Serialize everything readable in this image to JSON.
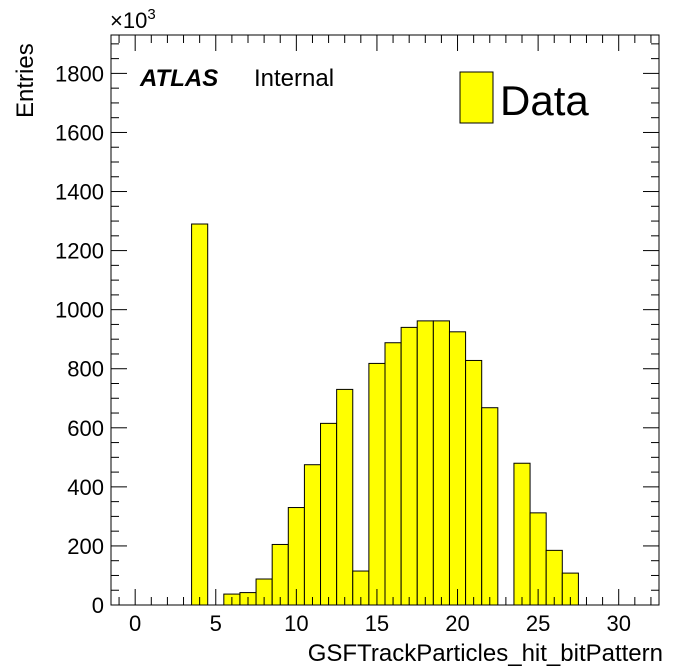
{
  "chart_data": {
    "type": "bar",
    "histogram": true,
    "bin_width": 1,
    "bins": [
      {
        "x": 0,
        "value": 0
      },
      {
        "x": 1,
        "value": 0
      },
      {
        "x": 2,
        "value": 0
      },
      {
        "x": 3,
        "value": 0
      },
      {
        "x": 4,
        "value": 1290
      },
      {
        "x": 5,
        "value": 0
      },
      {
        "x": 6,
        "value": 37
      },
      {
        "x": 7,
        "value": 42
      },
      {
        "x": 8,
        "value": 88
      },
      {
        "x": 9,
        "value": 205
      },
      {
        "x": 10,
        "value": 330
      },
      {
        "x": 11,
        "value": 475
      },
      {
        "x": 12,
        "value": 615
      },
      {
        "x": 13,
        "value": 730
      },
      {
        "x": 14,
        "value": 115
      },
      {
        "x": 15,
        "value": 818
      },
      {
        "x": 16,
        "value": 888
      },
      {
        "x": 17,
        "value": 940
      },
      {
        "x": 18,
        "value": 962
      },
      {
        "x": 19,
        "value": 962
      },
      {
        "x": 20,
        "value": 925
      },
      {
        "x": 21,
        "value": 828
      },
      {
        "x": 22,
        "value": 668
      },
      {
        "x": 23,
        "value": 0
      },
      {
        "x": 24,
        "value": 480
      },
      {
        "x": 25,
        "value": 312
      },
      {
        "x": 26,
        "value": 185
      },
      {
        "x": 27,
        "value": 108
      },
      {
        "x": 28,
        "value": 0
      },
      {
        "x": 29,
        "value": 0
      },
      {
        "x": 30,
        "value": 0
      },
      {
        "x": 31,
        "value": 0
      }
    ],
    "xlabel": "GSFTrackParticles_hit_bitPattern",
    "ylabel": "Entries",
    "xlim": [
      -1.5,
      32.5
    ],
    "ylim": [
      0,
      1930
    ],
    "x_ticks": [
      0,
      5,
      10,
      15,
      20,
      25,
      30
    ],
    "y_ticks": [
      0,
      200,
      400,
      600,
      800,
      1000,
      1200,
      1400,
      1600,
      1800
    ],
    "y_multiplier": {
      "base": "×10",
      "exponent": "3"
    },
    "legend": {
      "entries": [
        "Data"
      ],
      "placement": "top-right"
    },
    "atlas_label": "ATLAS",
    "atlas_status": "Internal",
    "grid": false,
    "fill_color": "#ffff00",
    "line_color": "#000000"
  }
}
